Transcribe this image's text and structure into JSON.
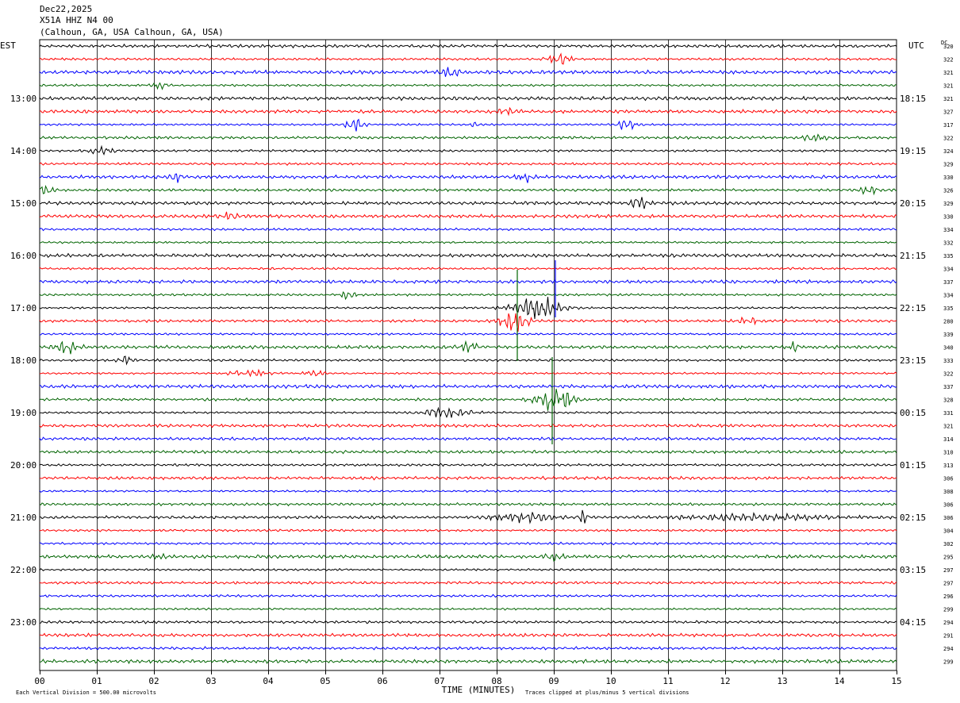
{
  "header": {
    "date": "Dec22,2025",
    "station": "X51A HHZ N4 00",
    "location": "(Calhoun, GA, USA Calhoun, GA, USA)"
  },
  "chart_data": {
    "type": "line",
    "title": "Dec22,2025 X51A HHZ N4 00 (Calhoun, GA, USA Calhoun, GA, USA)",
    "left_zone_label": "EST",
    "right_zone_label": "UTC",
    "dc_label": "DC",
    "xlabel": "TIME (MINUTES)",
    "x_ticks": [
      "00",
      "01",
      "02",
      "03",
      "04",
      "05",
      "06",
      "07",
      "08",
      "09",
      "10",
      "11",
      "12",
      "13",
      "14",
      "15"
    ],
    "xlim": [
      0,
      15
    ],
    "left_hour_labels": [
      "13:00",
      "14:00",
      "15:00",
      "16:00",
      "17:00",
      "18:00",
      "19:00",
      "20:00",
      "21:00",
      "22:00",
      "23:00"
    ],
    "right_hour_labels": [
      "18:15",
      "19:15",
      "20:15",
      "21:15",
      "22:15",
      "23:15",
      "00:15",
      "01:15",
      "02:15",
      "03:15",
      "04:15"
    ],
    "dc_values": [
      "320",
      "322",
      "321",
      "321",
      "321",
      "327",
      "317",
      "322",
      "324",
      "329",
      "330",
      "326",
      "329",
      "330",
      "334",
      "332",
      "335",
      "334",
      "337",
      "334",
      "335",
      "280",
      "339",
      "340",
      "333",
      "322",
      "337",
      "328",
      "331",
      "321",
      "314",
      "310",
      "313",
      "306",
      "308",
      "306",
      "306",
      "304",
      "302",
      "295",
      "297",
      "297",
      "296",
      "299",
      "294",
      "291",
      "294",
      "299"
    ],
    "trace_colors": [
      "#000000",
      "#ff0000",
      "#0000ff",
      "#006400"
    ],
    "grid": true,
    "footer_left": "Each Vertical Division =  500.00 microvolts",
    "footer_right": "Traces clipped at plus/minus 5 vertical divisions"
  }
}
